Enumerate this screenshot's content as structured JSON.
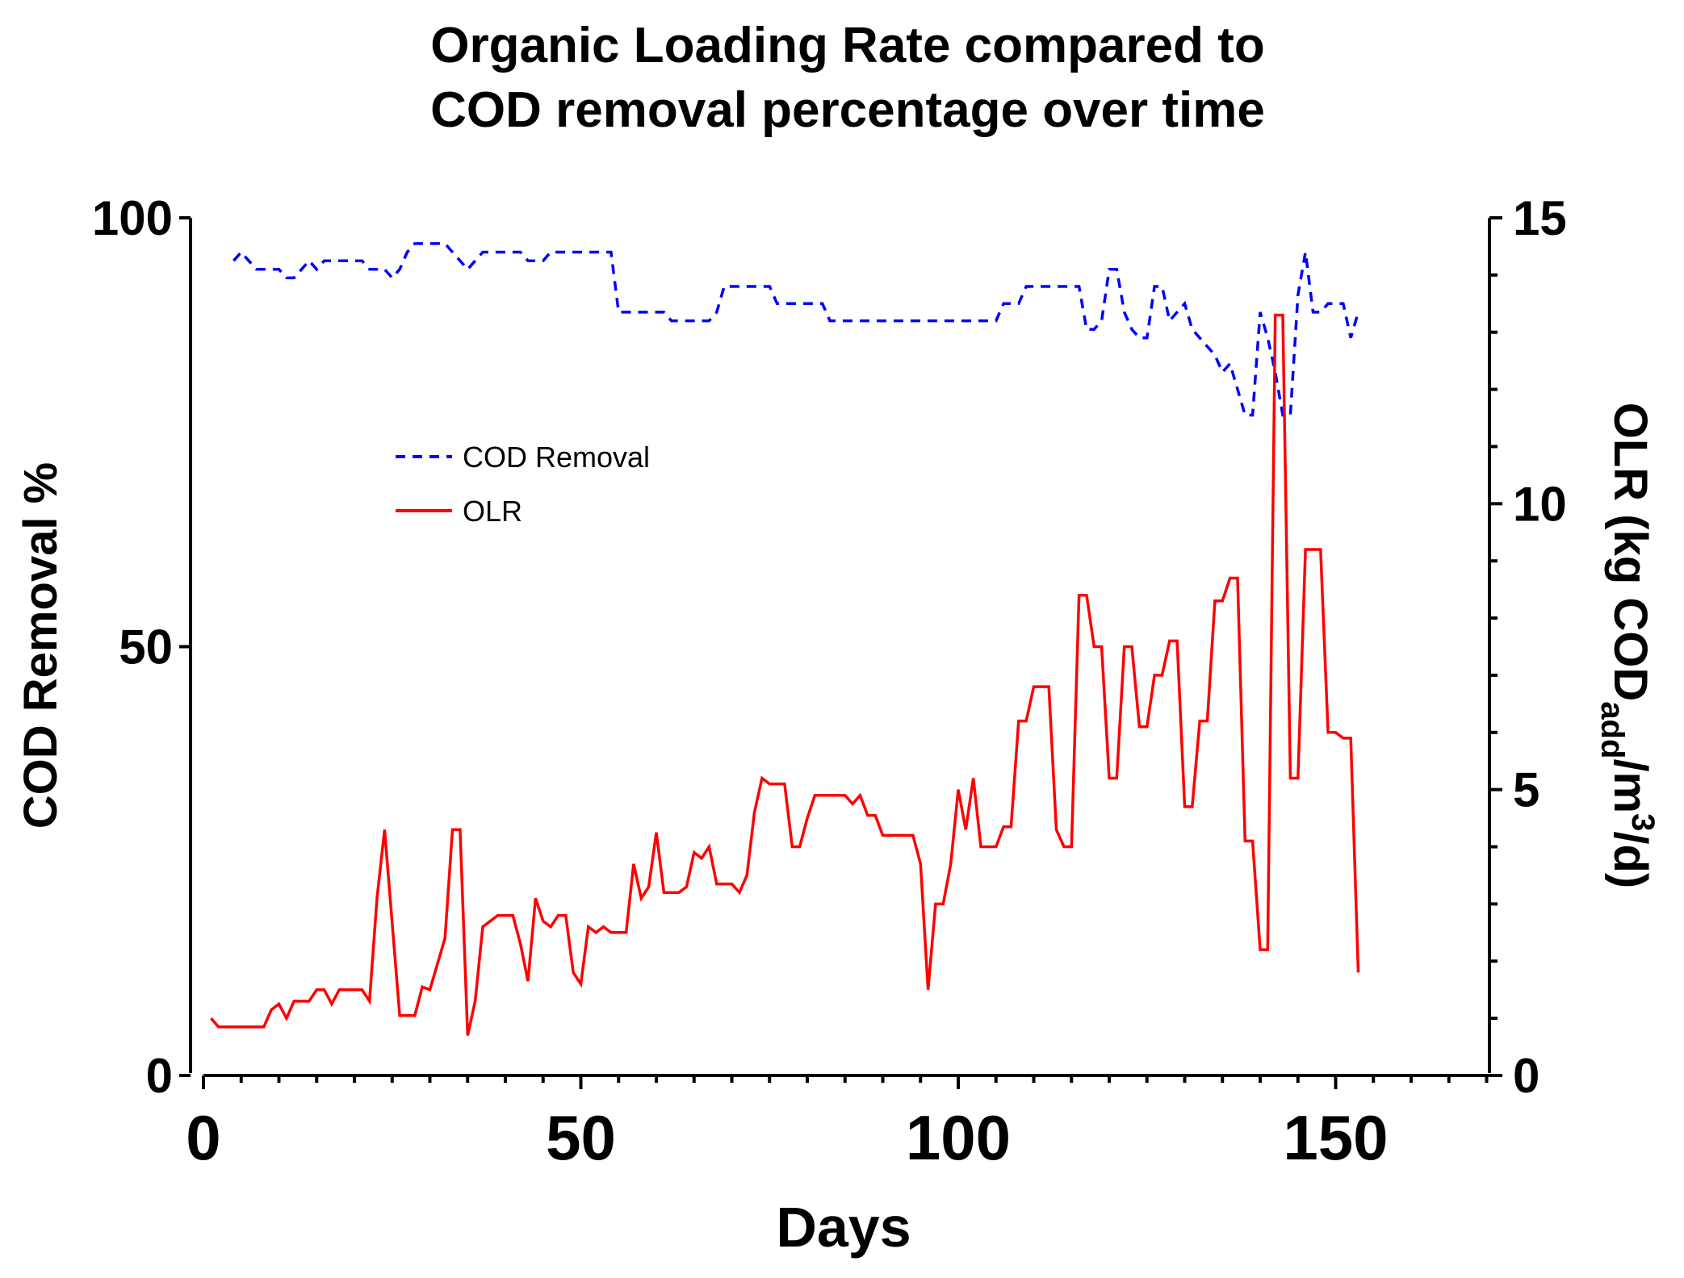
{
  "chart_data": {
    "type": "line",
    "title_line1": "Organic Loading Rate compared to",
    "title_line2": "COD removal percentage over time",
    "xlabel": "Days",
    "ylabel_left": "COD Removal %",
    "ylabel_right_prefix": "OLR (kg COD",
    "ylabel_right_sub": "add",
    "ylabel_right_mid": "/m",
    "ylabel_right_sup": "3",
    "ylabel_right_suffix": "/d)",
    "xlim": [
      0,
      170
    ],
    "ylim_left": [
      0,
      100
    ],
    "ylim_right": [
      0,
      15
    ],
    "x_ticks": [
      "0",
      "50",
      "100",
      "150"
    ],
    "y_left_ticks": [
      "0",
      "50",
      "100"
    ],
    "y_right_ticks": [
      "0",
      "5",
      "10",
      "15"
    ],
    "legend": {
      "position": "upper-left",
      "items": [
        "COD Removal",
        "OLR"
      ]
    },
    "colors": {
      "cod": "#0000ff",
      "olr": "#ff0000",
      "axis": "#000000"
    },
    "series": [
      {
        "name": "COD Removal",
        "axis": "left",
        "style": "dashed",
        "points": [
          [
            4,
            95
          ],
          [
            5,
            96
          ],
          [
            6,
            95
          ],
          [
            7,
            94
          ],
          [
            10,
            94
          ],
          [
            11,
            93
          ],
          [
            12,
            93
          ],
          [
            13,
            94
          ],
          [
            14,
            95
          ],
          [
            15,
            94
          ],
          [
            16,
            95
          ],
          [
            21,
            95
          ],
          [
            22,
            94
          ],
          [
            24,
            94
          ],
          [
            25,
            93
          ],
          [
            26,
            94
          ],
          [
            27,
            96
          ],
          [
            28,
            97
          ],
          [
            32,
            97
          ],
          [
            33,
            96
          ],
          [
            35,
            94
          ],
          [
            36,
            95
          ],
          [
            37,
            96
          ],
          [
            42,
            96
          ],
          [
            43,
            95
          ],
          [
            45,
            95
          ],
          [
            46,
            96
          ],
          [
            54,
            96
          ],
          [
            55,
            89
          ],
          [
            61,
            89
          ],
          [
            62,
            88
          ],
          [
            67,
            88
          ],
          [
            68,
            89
          ],
          [
            69,
            92
          ],
          [
            75,
            92
          ],
          [
            76,
            90
          ],
          [
            82,
            90
          ],
          [
            83,
            88
          ],
          [
            105,
            88
          ],
          [
            106,
            90
          ],
          [
            108,
            90
          ],
          [
            109,
            92
          ],
          [
            116,
            92
          ],
          [
            117,
            87
          ],
          [
            118,
            87
          ],
          [
            119,
            88
          ],
          [
            120,
            94
          ],
          [
            121,
            94
          ],
          [
            122,
            89
          ],
          [
            123,
            87
          ],
          [
            124,
            86
          ],
          [
            125,
            86
          ],
          [
            126,
            92
          ],
          [
            127,
            92
          ],
          [
            128,
            88
          ],
          [
            129,
            89
          ],
          [
            130,
            90
          ],
          [
            131,
            87
          ],
          [
            132,
            86
          ],
          [
            133,
            85
          ],
          [
            134,
            84
          ],
          [
            135,
            82
          ],
          [
            136,
            83
          ],
          [
            137,
            80
          ],
          [
            138,
            77
          ],
          [
            139,
            77
          ],
          [
            140,
            89
          ],
          [
            141,
            86
          ],
          [
            142,
            82
          ],
          [
            143,
            77
          ],
          [
            144,
            77
          ],
          [
            145,
            91
          ],
          [
            146,
            96
          ],
          [
            147,
            89
          ],
          [
            148,
            89
          ],
          [
            149,
            90
          ],
          [
            151,
            90
          ],
          [
            152,
            86
          ],
          [
            153,
            89
          ]
        ]
      },
      {
        "name": "OLR",
        "axis": "right",
        "style": "solid",
        "points": [
          [
            1,
            1.0
          ],
          [
            2,
            0.85
          ],
          [
            8,
            0.85
          ],
          [
            9,
            1.15
          ],
          [
            10,
            1.25
          ],
          [
            11,
            1.0
          ],
          [
            12,
            1.3
          ],
          [
            14,
            1.3
          ],
          [
            15,
            1.5
          ],
          [
            16,
            1.5
          ],
          [
            17,
            1.25
          ],
          [
            18,
            1.5
          ],
          [
            21,
            1.5
          ],
          [
            22,
            1.3
          ],
          [
            23,
            3.1
          ],
          [
            24,
            4.3
          ],
          [
            26,
            1.05
          ],
          [
            28,
            1.05
          ],
          [
            29,
            1.55
          ],
          [
            30,
            1.5
          ],
          [
            32,
            2.4
          ],
          [
            33,
            4.3
          ],
          [
            34,
            4.3
          ],
          [
            35,
            0.7
          ],
          [
            36,
            1.3
          ],
          [
            37,
            2.6
          ],
          [
            39,
            2.8
          ],
          [
            41,
            2.8
          ],
          [
            42,
            2.3
          ],
          [
            43,
            1.65
          ],
          [
            44,
            3.1
          ],
          [
            45,
            2.7
          ],
          [
            46,
            2.6
          ],
          [
            47,
            2.8
          ],
          [
            48,
            2.8
          ],
          [
            49,
            1.8
          ],
          [
            50,
            1.6
          ],
          [
            51,
            2.6
          ],
          [
            52,
            2.5
          ],
          [
            53,
            2.6
          ],
          [
            54,
            2.5
          ],
          [
            56,
            2.5
          ],
          [
            57,
            3.7
          ],
          [
            58,
            3.1
          ],
          [
            59,
            3.3
          ],
          [
            60,
            4.25
          ],
          [
            61,
            3.2
          ],
          [
            63,
            3.2
          ],
          [
            64,
            3.3
          ],
          [
            65,
            3.9
          ],
          [
            66,
            3.8
          ],
          [
            67,
            4.0
          ],
          [
            68,
            3.35
          ],
          [
            70,
            3.35
          ],
          [
            71,
            3.2
          ],
          [
            72,
            3.5
          ],
          [
            73,
            4.6
          ],
          [
            74,
            5.2
          ],
          [
            75,
            5.1
          ],
          [
            77,
            5.1
          ],
          [
            78,
            4.0
          ],
          [
            79,
            4.0
          ],
          [
            80,
            4.5
          ],
          [
            81,
            4.9
          ],
          [
            85,
            4.9
          ],
          [
            86,
            4.75
          ],
          [
            87,
            4.9
          ],
          [
            88,
            4.55
          ],
          [
            89,
            4.55
          ],
          [
            90,
            4.2
          ],
          [
            94,
            4.2
          ],
          [
            95,
            3.7
          ],
          [
            96,
            1.5
          ],
          [
            97,
            3.0
          ],
          [
            98,
            3.0
          ],
          [
            99,
            3.7
          ],
          [
            100,
            5.0
          ],
          [
            101,
            4.3
          ],
          [
            102,
            5.2
          ],
          [
            103,
            4.0
          ],
          [
            105,
            4.0
          ],
          [
            106,
            4.35
          ],
          [
            107,
            4.35
          ],
          [
            108,
            6.2
          ],
          [
            109,
            6.2
          ],
          [
            110,
            6.8
          ],
          [
            112,
            6.8
          ],
          [
            113,
            4.3
          ],
          [
            114,
            4.0
          ],
          [
            115,
            4.0
          ],
          [
            116,
            8.4
          ],
          [
            117,
            8.4
          ],
          [
            118,
            7.5
          ],
          [
            119,
            7.5
          ],
          [
            120,
            5.2
          ],
          [
            121,
            5.2
          ],
          [
            122,
            7.5
          ],
          [
            123,
            7.5
          ],
          [
            124,
            6.1
          ],
          [
            125,
            6.1
          ],
          [
            126,
            7.0
          ],
          [
            127,
            7.0
          ],
          [
            128,
            7.6
          ],
          [
            129,
            7.6
          ],
          [
            130,
            4.7
          ],
          [
            131,
            4.7
          ],
          [
            132,
            6.2
          ],
          [
            133,
            6.2
          ],
          [
            134,
            8.3
          ],
          [
            135,
            8.3
          ],
          [
            136,
            8.7
          ],
          [
            137,
            8.7
          ],
          [
            138,
            4.1
          ],
          [
            139,
            4.1
          ],
          [
            140,
            2.2
          ],
          [
            141,
            2.2
          ],
          [
            142,
            13.3
          ],
          [
            143,
            13.3
          ],
          [
            144,
            5.2
          ],
          [
            145,
            5.2
          ],
          [
            146,
            9.2
          ],
          [
            148,
            9.2
          ],
          [
            149,
            6.0
          ],
          [
            150,
            6.0
          ],
          [
            151,
            5.9
          ],
          [
            152,
            5.9
          ],
          [
            153,
            1.8
          ]
        ]
      }
    ]
  }
}
